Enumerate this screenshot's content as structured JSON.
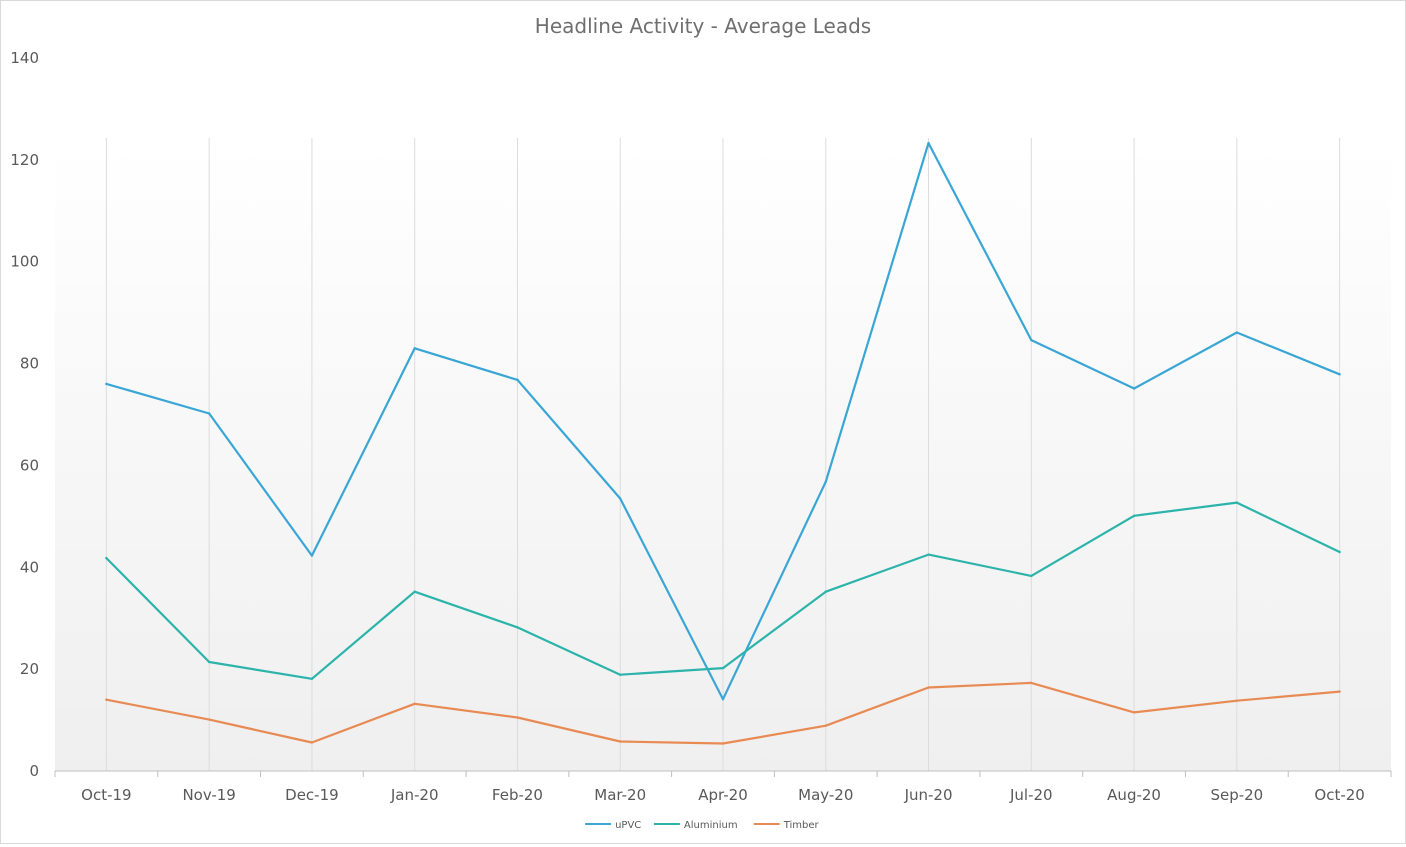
{
  "chart_data": {
    "type": "line",
    "title": "Headline  Activity  - Average Leads",
    "xlabel": "",
    "ylabel": "",
    "ylim": [
      0,
      140
    ],
    "yticks": [
      0,
      20,
      40,
      60,
      80,
      100,
      120,
      140
    ],
    "grid": "vertical",
    "legend_position": "bottom-center",
    "categories": [
      "Oct-19",
      "Nov-19",
      "Dec-19",
      "Jan-20",
      "Feb-20",
      "Mar-20",
      "Apr-20",
      "May-20",
      "Jun-20",
      "Jul-20",
      "Aug-20",
      "Sep-20",
      "Oct-20"
    ],
    "series": [
      {
        "name": "uPVC",
        "color": "#3aa6d6",
        "values": [
          76,
          70.2,
          42.3,
          83,
          76.8,
          53.5,
          14.1,
          56.8,
          123.3,
          84.6,
          75.1,
          86.1,
          77.9
        ]
      },
      {
        "name": "Aluminium",
        "color": "#2cb3aa",
        "values": [
          41.8,
          21.4,
          18.1,
          35.2,
          28.2,
          18.9,
          20.2,
          35.2,
          42.5,
          38.3,
          50.1,
          52.7,
          43.0
        ]
      },
      {
        "name": "Timber",
        "color": "#e88a53",
        "values": [
          14.0,
          10.1,
          5.6,
          13.2,
          10.5,
          5.8,
          5.4,
          8.9,
          16.4,
          17.3,
          11.5,
          13.8,
          15.6
        ]
      }
    ]
  }
}
